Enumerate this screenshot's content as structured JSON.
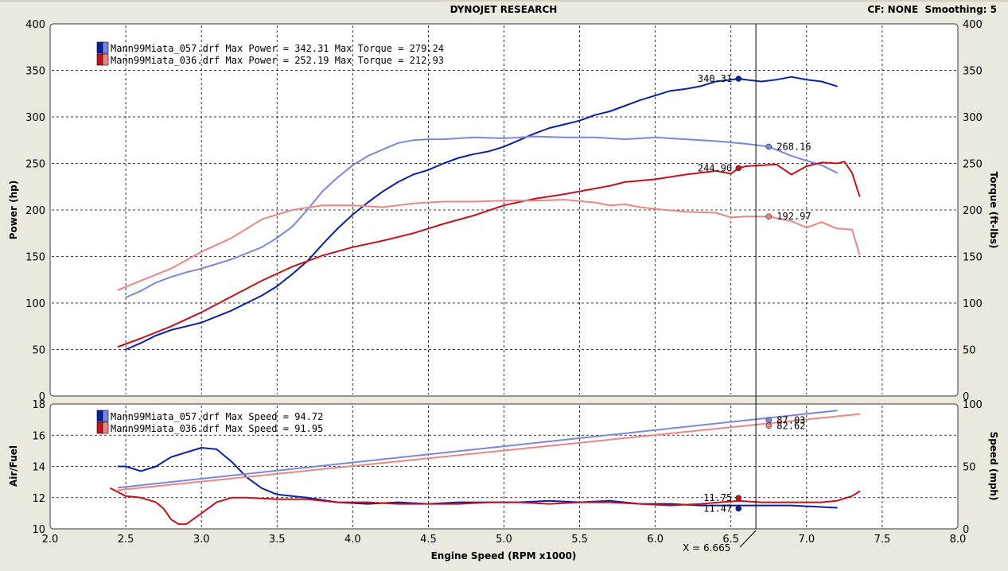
{
  "header": {
    "title": "DYNOJET RESEARCH",
    "settings": "CF: NONE  Smoothing: 5"
  },
  "colors": {
    "run057_power": "#0a1fa8",
    "run057_torque": "#7b86e0",
    "run036_power": "#c8101a",
    "run036_torque": "#ec8585",
    "plot_bg": "#ffffff",
    "frame_bg": "#ebe9dd"
  },
  "cursor": {
    "rpm": 6.665,
    "label": "X = 6.665"
  },
  "chart_data": [
    {
      "type": "line",
      "panel": "top",
      "xlabel": "",
      "ylabel": "Power (hp)",
      "y2label": "Torque (ft-lbs)",
      "xlim": [
        2.0,
        8.0
      ],
      "ylim": [
        0,
        400
      ],
      "y2lim": [
        0,
        400
      ],
      "yticks": [
        "0",
        "50",
        "100",
        "150",
        "200",
        "250",
        "300",
        "350",
        "400"
      ],
      "grid": true,
      "legend": "top-left",
      "legend_entries": [
        {
          "text": "Mann99Miata_057.drf Max Power = 342.31 Max Torque = 279.24",
          "color_a": "#0a1fa8",
          "color_b": "#7b86e0"
        },
        {
          "text": "Mann99Miata_036.drf Max Power = 252.19 Max Torque = 212.93",
          "color_a": "#c8101a",
          "color_b": "#ec8585"
        }
      ],
      "series": [
        {
          "name": "Mann99Miata_057.drf",
          "quantity": "power",
          "axis": "left",
          "color": "#0a1fa8",
          "x": [
            2.5,
            2.6,
            2.7,
            2.8,
            2.9,
            3.0,
            3.2,
            3.4,
            3.5,
            3.6,
            3.7,
            3.8,
            3.9,
            4.0,
            4.1,
            4.2,
            4.3,
            4.4,
            4.5,
            4.6,
            4.7,
            4.8,
            4.9,
            5.0,
            5.1,
            5.2,
            5.3,
            5.4,
            5.5,
            5.6,
            5.7,
            5.8,
            5.9,
            6.0,
            6.1,
            6.2,
            6.3,
            6.4,
            6.5,
            6.55,
            6.6,
            6.7,
            6.8,
            6.9,
            7.0,
            7.1,
            7.2
          ],
          "y": [
            50,
            57,
            65,
            71,
            75,
            79,
            92,
            108,
            118,
            131,
            145,
            163,
            180,
            195,
            208,
            220,
            230,
            238,
            243,
            250,
            256,
            260,
            263,
            268,
            275,
            282,
            288,
            292,
            296,
            302,
            306,
            312,
            318,
            323,
            328,
            330,
            333,
            338,
            340,
            341,
            340,
            338,
            340,
            343,
            340,
            338,
            333
          ]
        },
        {
          "name": "Mann99Miata_057.drf",
          "quantity": "torque",
          "axis": "right",
          "color": "#7b86e0",
          "x": [
            2.5,
            2.6,
            2.7,
            2.8,
            2.9,
            3.0,
            3.2,
            3.4,
            3.5,
            3.6,
            3.7,
            3.8,
            3.9,
            4.0,
            4.1,
            4.2,
            4.3,
            4.4,
            4.5,
            4.6,
            4.7,
            4.8,
            5.0,
            5.2,
            5.4,
            5.6,
            5.8,
            6.0,
            6.2,
            6.4,
            6.6,
            6.75,
            6.9,
            7.0,
            7.1,
            7.2
          ],
          "y": [
            106,
            113,
            122,
            128,
            133,
            137,
            147,
            160,
            170,
            182,
            200,
            220,
            235,
            248,
            258,
            265,
            272,
            275,
            276,
            276,
            277,
            278,
            277,
            279,
            278,
            278,
            276,
            278,
            276,
            274,
            271,
            268,
            258,
            253,
            248,
            240
          ]
        },
        {
          "name": "Mann99Miata_036.drf",
          "quantity": "power",
          "axis": "left",
          "color": "#c8101a",
          "x": [
            2.45,
            2.6,
            2.8,
            3.0,
            3.2,
            3.4,
            3.6,
            3.8,
            4.0,
            4.2,
            4.4,
            4.6,
            4.8,
            5.0,
            5.2,
            5.4,
            5.6,
            5.7,
            5.8,
            6.0,
            6.2,
            6.4,
            6.5,
            6.55,
            6.6,
            6.8,
            6.9,
            7.0,
            7.1,
            7.2,
            7.25,
            7.3,
            7.35
          ],
          "y": [
            53,
            62,
            75,
            90,
            107,
            124,
            139,
            151,
            160,
            167,
            175,
            185,
            194,
            205,
            212,
            217,
            223,
            226,
            230,
            233,
            238,
            242,
            239,
            245,
            247,
            249,
            238,
            247,
            251,
            250,
            252,
            240,
            215
          ]
        },
        {
          "name": "Mann99Miata_036.drf",
          "quantity": "torque",
          "axis": "right",
          "color": "#ec8585",
          "x": [
            2.45,
            2.6,
            2.8,
            3.0,
            3.2,
            3.4,
            3.6,
            3.8,
            4.0,
            4.2,
            4.4,
            4.6,
            4.8,
            5.0,
            5.2,
            5.4,
            5.6,
            5.7,
            5.8,
            5.9,
            6.0,
            6.2,
            6.4,
            6.5,
            6.6,
            6.75,
            6.9,
            7.0,
            7.1,
            7.2,
            7.3,
            7.35
          ],
          "y": [
            114,
            124,
            137,
            155,
            170,
            190,
            200,
            205,
            205,
            203,
            207,
            209,
            209,
            210,
            210,
            211,
            208,
            205,
            206,
            203,
            201,
            198,
            197,
            192,
            193,
            193,
            188,
            181,
            187,
            180,
            179,
            152
          ]
        }
      ],
      "annotations": [
        {
          "text": "340.31",
          "x": 6.55,
          "y": 341,
          "color": "#0a1fa8",
          "label_side": "left"
        },
        {
          "text": "268.16",
          "x": 6.75,
          "y": 268,
          "color": "#7b86e0",
          "label_side": "right"
        },
        {
          "text": "244.90",
          "x": 6.55,
          "y": 245,
          "color": "#c8101a",
          "label_side": "left"
        },
        {
          "text": "192.97",
          "x": 6.75,
          "y": 193,
          "color": "#ec8585",
          "label_side": "right"
        }
      ]
    },
    {
      "type": "line",
      "panel": "bottom",
      "xlabel": "Engine Speed (RPM x1000)",
      "ylabel": "Air/Fuel",
      "y2label": "Speed (mph)",
      "xlim": [
        2.0,
        8.0
      ],
      "xticks": [
        "2.0",
        "2.5",
        "3.0",
        "3.5",
        "4.0",
        "4.5",
        "5.0",
        "5.5",
        "6.0",
        "6.5",
        "7.0",
        "7.5",
        "8.0"
      ],
      "ylim": [
        10,
        18
      ],
      "yticks": [
        "10",
        "12",
        "14",
        "16",
        "18"
      ],
      "y2lim": [
        0,
        100
      ],
      "y2ticks": [
        "0",
        "50",
        "100"
      ],
      "grid": true,
      "legend": "top-left",
      "legend_entries": [
        {
          "text": "Mann99Miata_057.drf Max Speed = 94.72",
          "color_a": "#0a1fa8",
          "color_b": "#7b86e0"
        },
        {
          "text": "Mann99Miata_036.drf Max Speed = 91.95",
          "color_a": "#c8101a",
          "color_b": "#ec8585"
        }
      ],
      "series": [
        {
          "name": "Mann99Miata_057.drf",
          "quantity": "air_fuel",
          "axis": "left",
          "color": "#0a1fa8",
          "x": [
            2.45,
            2.5,
            2.6,
            2.7,
            2.8,
            3.0,
            3.1,
            3.2,
            3.3,
            3.4,
            3.5,
            3.7,
            3.9,
            4.1,
            4.3,
            4.5,
            4.7,
            4.9,
            5.1,
            5.3,
            5.5,
            5.7,
            5.9,
            6.1,
            6.3,
            6.55,
            6.7,
            6.9,
            7.1,
            7.2
          ],
          "y": [
            14.0,
            14.0,
            13.7,
            14.0,
            14.6,
            15.2,
            15.1,
            14.3,
            13.3,
            12.6,
            12.2,
            12.0,
            11.7,
            11.6,
            11.7,
            11.6,
            11.7,
            11.7,
            11.7,
            11.8,
            11.7,
            11.8,
            11.6,
            11.6,
            11.5,
            11.5,
            11.5,
            11.5,
            11.4,
            11.35
          ]
        },
        {
          "name": "Mann99Miata_057.drf",
          "quantity": "speed",
          "axis": "right",
          "color": "#7b86e0",
          "x": [
            2.45,
            7.2
          ],
          "y": [
            33,
            94.7
          ]
        },
        {
          "name": "Mann99Miata_036.drf",
          "quantity": "air_fuel",
          "axis": "left",
          "color": "#c8101a",
          "x": [
            2.4,
            2.5,
            2.6,
            2.7,
            2.75,
            2.8,
            2.85,
            2.9,
            3.0,
            3.1,
            3.2,
            3.3,
            3.5,
            3.7,
            3.9,
            4.1,
            4.3,
            4.5,
            4.7,
            4.9,
            5.1,
            5.3,
            5.5,
            5.7,
            5.9,
            6.1,
            6.3,
            6.55,
            6.7,
            6.9,
            7.1,
            7.2,
            7.3,
            7.35
          ],
          "y": [
            12.6,
            12.1,
            12.0,
            11.7,
            11.3,
            10.6,
            10.3,
            10.3,
            11.0,
            11.7,
            12.0,
            12.0,
            11.9,
            11.9,
            11.7,
            11.7,
            11.6,
            11.6,
            11.6,
            11.7,
            11.7,
            11.6,
            11.7,
            11.7,
            11.6,
            11.5,
            11.6,
            11.8,
            11.7,
            11.7,
            11.7,
            11.8,
            12.1,
            12.4
          ]
        },
        {
          "name": "Mann99Miata_036.drf",
          "quantity": "speed",
          "axis": "right",
          "color": "#ec8585",
          "x": [
            2.45,
            7.35
          ],
          "y": [
            31,
            91.95
          ]
        }
      ],
      "annotations": [
        {
          "text": "87.03",
          "x": 6.75,
          "y": 87.03,
          "axis": "right",
          "color": "#7b86e0",
          "label_side": "right"
        },
        {
          "text": "82.62",
          "x": 6.75,
          "y": 82.62,
          "axis": "right",
          "color": "#ec8585",
          "label_side": "right"
        },
        {
          "text": "11.75",
          "x": 6.55,
          "y": 11.98,
          "axis": "left",
          "color": "#c8101a",
          "label_side": "left"
        },
        {
          "text": "11.47",
          "x": 6.55,
          "y": 11.3,
          "axis": "left",
          "color": "#0a1fa8",
          "label_side": "left"
        }
      ]
    }
  ]
}
